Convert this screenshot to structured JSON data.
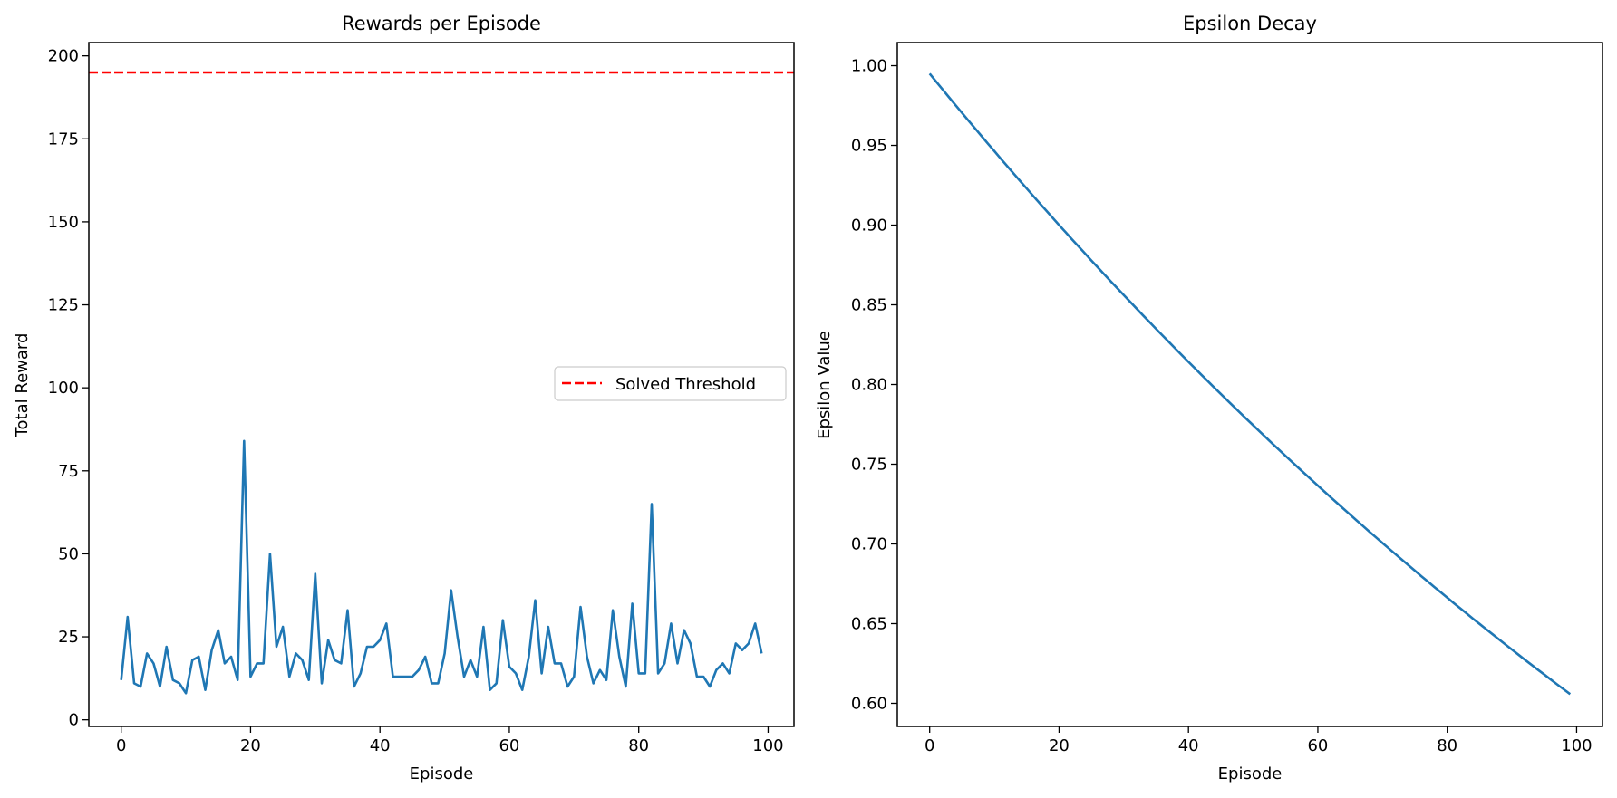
{
  "chart_data": [
    {
      "type": "line",
      "title": "Rewards per Episode",
      "xlabel": "Episode",
      "ylabel": "Total Reward",
      "xlim": [
        -5,
        104
      ],
      "ylim": [
        -2,
        204
      ],
      "xticks": [
        0,
        20,
        40,
        60,
        80,
        100
      ],
      "yticks": [
        0,
        25,
        50,
        75,
        100,
        125,
        150,
        175,
        200
      ],
      "grid": false,
      "legend": {
        "placement": "center-right",
        "entries": [
          "Solved Threshold"
        ]
      },
      "threshold": {
        "name": "Solved Threshold",
        "value": 195,
        "color": "#ff0000",
        "style": "dashed"
      },
      "series": [
        {
          "color": "#1f77b4",
          "x": [
            0,
            1,
            2,
            3,
            4,
            5,
            6,
            7,
            8,
            9,
            10,
            11,
            12,
            13,
            14,
            15,
            16,
            17,
            18,
            19,
            20,
            21,
            22,
            23,
            24,
            25,
            26,
            27,
            28,
            29,
            30,
            31,
            32,
            33,
            34,
            35,
            36,
            37,
            38,
            39,
            40,
            41,
            42,
            43,
            44,
            45,
            46,
            47,
            48,
            49,
            50,
            51,
            52,
            53,
            54,
            55,
            56,
            57,
            58,
            59,
            60,
            61,
            62,
            63,
            64,
            65,
            66,
            67,
            68,
            69,
            70,
            71,
            72,
            73,
            74,
            75,
            76,
            77,
            78,
            79,
            80,
            81,
            82,
            83,
            84,
            85,
            86,
            87,
            88,
            89,
            90,
            91,
            92,
            93,
            94,
            95,
            96,
            97,
            98,
            99
          ],
          "values": [
            12,
            31,
            11,
            10,
            20,
            17,
            10,
            22,
            12,
            11,
            8,
            18,
            19,
            9,
            21,
            27,
            17,
            19,
            12,
            84,
            13,
            17,
            17,
            50,
            22,
            28,
            13,
            20,
            18,
            12,
            44,
            11,
            24,
            18,
            17,
            33,
            10,
            14,
            22,
            22,
            24,
            29,
            13,
            13,
            13,
            13,
            15,
            19,
            11,
            11,
            20,
            39,
            25,
            13,
            18,
            13,
            28,
            9,
            11,
            30,
            16,
            14,
            9,
            19,
            36,
            14,
            28,
            17,
            17,
            10,
            13,
            34,
            19,
            11,
            15,
            12,
            33,
            19,
            10,
            35,
            14,
            14,
            65,
            14,
            17,
            29,
            17,
            27,
            23,
            13,
            13,
            10,
            15,
            17,
            14,
            23,
            21,
            23,
            29,
            20
          ]
        }
      ]
    },
    {
      "type": "line",
      "title": "Epsilon Decay",
      "xlabel": "Episode",
      "ylabel": "Epsilon Value",
      "xlim": [
        -5,
        104
      ],
      "ylim": [
        0.5855,
        1.0145
      ],
      "xticks": [
        0,
        20,
        40,
        60,
        80,
        100
      ],
      "yticks": [
        0.6,
        0.65,
        0.7,
        0.75,
        0.8,
        0.85,
        0.9,
        0.95,
        1.0
      ],
      "ytick_labels": [
        "0.60",
        "0.65",
        "0.70",
        "0.75",
        "0.80",
        "0.85",
        "0.90",
        "0.95",
        "1.00"
      ],
      "grid": false,
      "series": [
        {
          "color": "#1f77b4",
          "start": 0.995,
          "decay": 0.995,
          "x": [
            0,
            99
          ],
          "values": [
            0.995,
            0.6058
          ]
        }
      ]
    }
  ]
}
